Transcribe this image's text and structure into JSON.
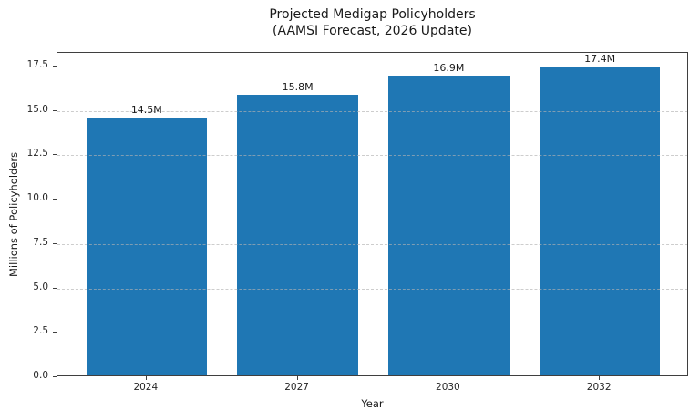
{
  "title": {
    "line1": "Projected Medigap Policyholders",
    "line2": "(AAMSI Forecast, 2026 Update)"
  },
  "chart_data": {
    "type": "bar",
    "title": "Projected Medigap Policyholders (AAMSI Forecast, 2026 Update)",
    "categories": [
      "2024",
      "2027",
      "2030",
      "2032"
    ],
    "values": [
      14.5,
      15.8,
      16.9,
      17.4
    ],
    "bar_labels": [
      "14.5M",
      "15.8M",
      "16.9M",
      "17.4M"
    ],
    "xlabel": "Year",
    "ylabel": "Millions of Policyholders",
    "ylim": [
      0,
      18.27
    ],
    "ytick_labels": [
      "0.0",
      "2.5",
      "5.0",
      "7.5",
      "10.0",
      "12.5",
      "15.0",
      "17.5"
    ],
    "grid": "horizontal-dashed",
    "legend": "none",
    "bar_color": "#1f77b4"
  },
  "colors": {
    "bar": "#1f77b4",
    "axis": "#3f3f3f",
    "grid": "#b2b2b2",
    "text": "#1a1a1a",
    "background": "#ffffff"
  }
}
